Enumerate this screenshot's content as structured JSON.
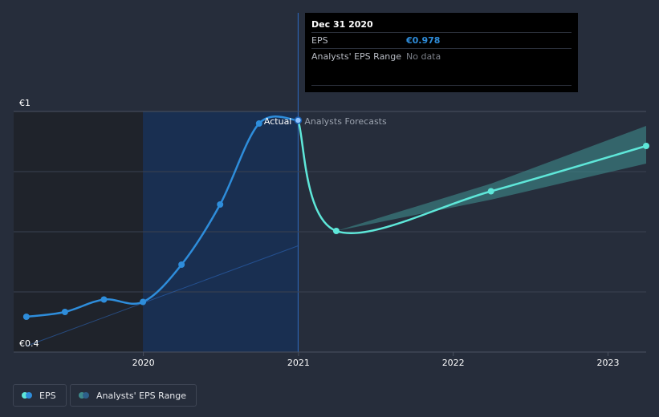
{
  "tooltip": {
    "date": "Dec 31 2020",
    "eps_label": "EPS",
    "eps_value": "€0.978",
    "range_label": "Analysts' EPS Range",
    "range_value": "No data"
  },
  "regions": {
    "actual": "Actual",
    "forecast": "Analysts Forecasts"
  },
  "legend": {
    "eps": "EPS",
    "range": "Analysts' EPS Range"
  },
  "colors": {
    "background": "#262d3b",
    "eps_actual": "#2e8ddb",
    "eps_forecast": "#5ee7d9",
    "range_band": "#3d8a8c",
    "highlight": "#16305a"
  },
  "chart_data": {
    "type": "line",
    "y_tick_labels": [
      "€1",
      "€0.4"
    ],
    "x_tick_labels": [
      "2020",
      "2021",
      "2022",
      "2023"
    ],
    "ylim": [
      0.4,
      1.0
    ],
    "xlim": [
      "2019-03-01",
      "2023-04-01"
    ],
    "grid": true,
    "legend_position": "bottom-left",
    "series": [
      {
        "name": "EPS",
        "kind": "actual",
        "x": [
          "2019-03-31",
          "2019-06-30",
          "2019-09-30",
          "2019-12-31",
          "2020-03-31",
          "2020-06-30",
          "2020-09-30",
          "2020-12-31"
        ],
        "y": [
          0.488,
          0.5,
          0.531,
          0.525,
          0.618,
          0.768,
          0.97,
          0.978
        ]
      },
      {
        "name": "EPS",
        "kind": "forecast",
        "x": [
          "2020-12-31",
          "2021-03-31",
          "2022-03-31",
          "2023-04-01"
        ],
        "y": [
          0.978,
          0.702,
          0.801,
          0.914
        ],
        "range_low": [
          0.978,
          0.702,
          0.78,
          0.87
        ],
        "range_high": [
          0.978,
          0.702,
          0.82,
          0.964
        ]
      },
      {
        "name": "",
        "kind": "faint_trend",
        "x": [
          "2019-03-31",
          "2020-12-31"
        ],
        "y": [
          0.415,
          0.665
        ]
      }
    ]
  }
}
